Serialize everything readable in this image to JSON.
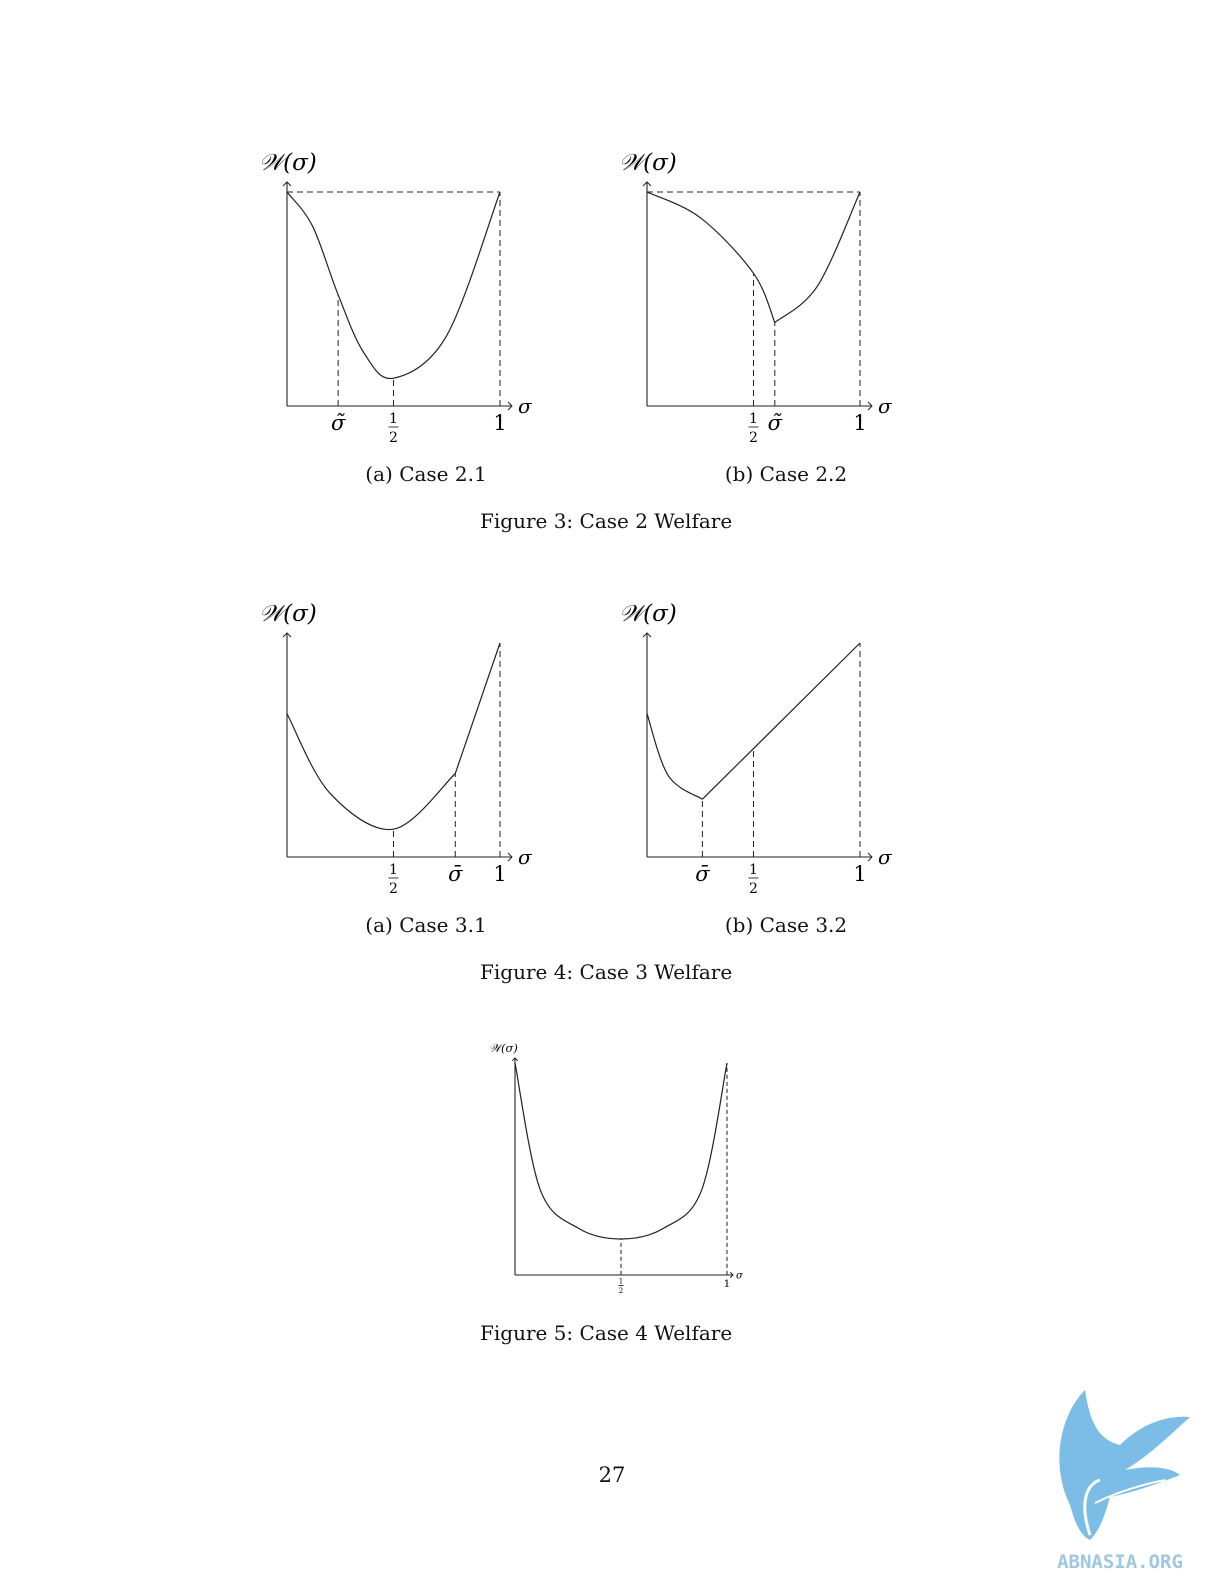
{
  "page_number": "27",
  "watermark": {
    "text": "ABNASIA.ORG",
    "color": "#7bbde6",
    "icon": "griffin-logo-icon"
  },
  "figures": [
    {
      "caption": "Figure 3: Case 2 Welfare",
      "subfigures": [
        {
          "caption": "(a) Case 2.1",
          "chart_data": {
            "type": "line",
            "ylabel": "𝒲(σ)",
            "xlabel": "σ",
            "xlim": [
              0,
              1
            ],
            "ticks": [
              {
                "value": 0.24,
                "label": "σ̃"
              },
              {
                "value": 0.5,
                "label": "1/2"
              },
              {
                "value": 1,
                "label": "1"
              }
            ],
            "series": [
              {
                "points": [
                  [
                    0,
                    1
                  ],
                  [
                    0.12,
                    0.84
                  ],
                  [
                    0.24,
                    0.52
                  ],
                  [
                    0.36,
                    0.25
                  ],
                  [
                    0.5,
                    0.13
                  ],
                  [
                    0.75,
                    0.33
                  ],
                  [
                    1,
                    1
                  ]
                ]
              }
            ]
          }
        },
        {
          "caption": "(b) Case 2.2",
          "chart_data": {
            "type": "line",
            "ylabel": "𝒲(σ)",
            "xlabel": "σ",
            "xlim": [
              0,
              1
            ],
            "ticks": [
              {
                "value": 0.5,
                "label": "1/2"
              },
              {
                "value": 0.6,
                "label": "σ̃"
              },
              {
                "value": 1,
                "label": "1"
              }
            ],
            "series": [
              {
                "points": [
                  [
                    0,
                    1
                  ],
                  [
                    0.25,
                    0.88
                  ],
                  [
                    0.5,
                    0.62
                  ],
                  [
                    0.6,
                    0.39
                  ],
                  [
                    0.8,
                    0.56
                  ],
                  [
                    1,
                    1
                  ]
                ]
              }
            ]
          }
        }
      ]
    },
    {
      "caption": "Figure 4: Case 3 Welfare",
      "subfigures": [
        {
          "caption": "(a) Case 3.1",
          "chart_data": {
            "type": "line",
            "ylabel": "𝒲(σ)",
            "xlabel": "σ",
            "xlim": [
              0,
              1
            ],
            "ticks": [
              {
                "value": 0.5,
                "label": "1/2"
              },
              {
                "value": 0.79,
                "label": "σ̄"
              },
              {
                "value": 1,
                "label": "1"
              }
            ],
            "series": [
              {
                "points": [
                  [
                    0,
                    0.67
                  ],
                  [
                    0.2,
                    0.3
                  ],
                  [
                    0.5,
                    0.13
                  ],
                  [
                    0.79,
                    0.39
                  ],
                  [
                    1,
                    1
                  ]
                ]
              }
            ]
          }
        },
        {
          "caption": "(b) Case 3.2",
          "chart_data": {
            "type": "line",
            "ylabel": "𝒲(σ)",
            "xlabel": "σ",
            "xlim": [
              0,
              1
            ],
            "ticks": [
              {
                "value": 0.26,
                "label": "σ̄"
              },
              {
                "value": 0.5,
                "label": "1/2"
              },
              {
                "value": 1,
                "label": "1"
              }
            ],
            "series": [
              {
                "points": [
                  [
                    0,
                    0.67
                  ],
                  [
                    0.1,
                    0.38
                  ],
                  [
                    0.26,
                    0.27
                  ],
                  [
                    1,
                    1
                  ]
                ]
              }
            ]
          }
        }
      ]
    },
    {
      "caption": "Figure 5: Case 4 Welfare",
      "subfigures": [
        {
          "caption": "",
          "chart_data": {
            "type": "line",
            "ylabel": "𝒲(σ)",
            "xlabel": "σ",
            "xlim": [
              0,
              1
            ],
            "ticks": [
              {
                "value": 0.5,
                "label": "1/2"
              },
              {
                "value": 1,
                "label": "1"
              }
            ],
            "series": [
              {
                "points": [
                  [
                    0,
                    1
                  ],
                  [
                    0.12,
                    0.4
                  ],
                  [
                    0.3,
                    0.22
                  ],
                  [
                    0.5,
                    0.17
                  ],
                  [
                    0.7,
                    0.22
                  ],
                  [
                    0.88,
                    0.4
                  ],
                  [
                    1,
                    1
                  ]
                ]
              }
            ]
          }
        }
      ]
    }
  ]
}
